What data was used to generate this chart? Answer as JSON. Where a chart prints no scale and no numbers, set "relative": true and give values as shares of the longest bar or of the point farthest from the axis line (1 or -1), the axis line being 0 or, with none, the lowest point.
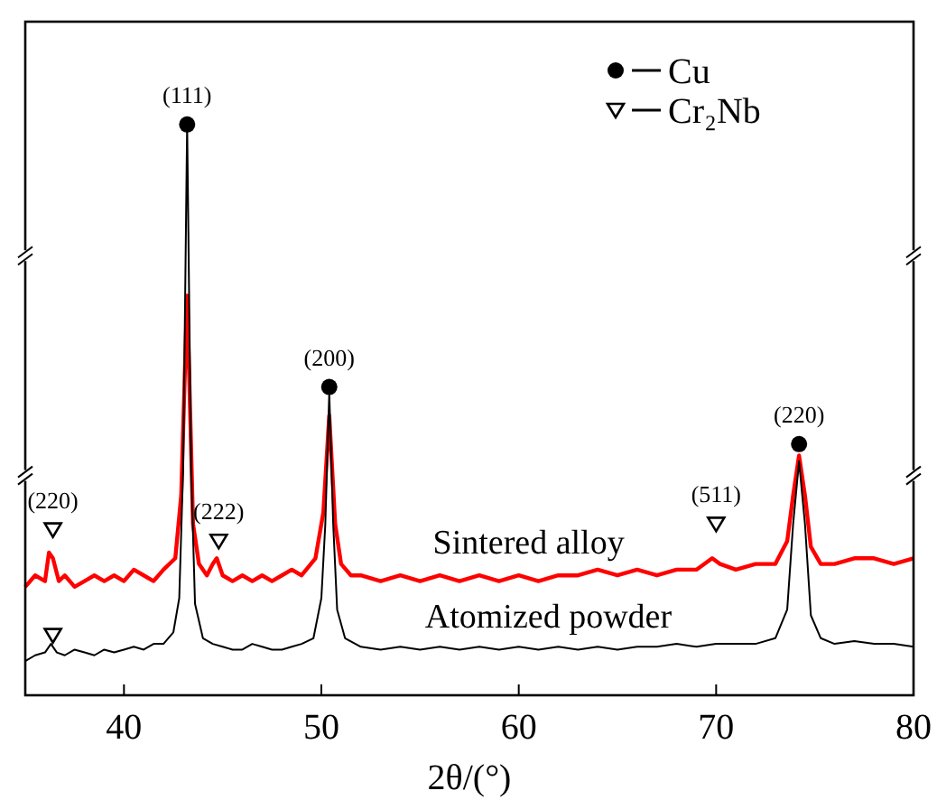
{
  "chart_data": {
    "type": "line",
    "relative": true,
    "xlabel": "2θ/(°)",
    "xlim": [
      35,
      80
    ],
    "xticks": [
      40,
      50,
      60,
      70,
      80
    ],
    "tick_labels": "x",
    "grid": false,
    "legend": "top right",
    "series": [
      {
        "name": "Sintered alloy",
        "color": "#ff0000",
        "x": [
          35,
          35.5,
          36,
          36.2,
          36.4,
          36.7,
          37,
          37.5,
          38,
          38.5,
          39,
          39.5,
          40,
          40.5,
          41,
          41.5,
          42,
          42.6,
          42.9,
          43.2,
          43.5,
          43.8,
          44.2,
          44.5,
          44.7,
          45,
          45.5,
          46,
          46.5,
          47,
          47.5,
          48,
          48.5,
          49,
          49.7,
          50.1,
          50.4,
          50.7,
          51,
          51.5,
          52,
          53,
          54,
          55,
          56,
          57,
          58,
          59,
          60,
          61,
          62,
          63,
          64,
          65,
          66,
          67,
          68,
          69,
          69.8,
          70.2,
          71,
          72,
          73,
          73.6,
          73.9,
          74.2,
          74.5,
          74.8,
          75.3,
          76,
          77,
          78,
          79,
          80
        ],
        "values": [
          0.19,
          0.21,
          0.2,
          0.25,
          0.24,
          0.2,
          0.21,
          0.19,
          0.2,
          0.21,
          0.2,
          0.21,
          0.2,
          0.22,
          0.21,
          0.2,
          0.22,
          0.24,
          0.35,
          0.7,
          0.3,
          0.23,
          0.21,
          0.23,
          0.24,
          0.21,
          0.2,
          0.21,
          0.2,
          0.21,
          0.2,
          0.21,
          0.22,
          0.21,
          0.24,
          0.32,
          0.49,
          0.3,
          0.23,
          0.21,
          0.21,
          0.2,
          0.21,
          0.2,
          0.21,
          0.2,
          0.21,
          0.2,
          0.21,
          0.2,
          0.21,
          0.21,
          0.22,
          0.21,
          0.22,
          0.21,
          0.22,
          0.22,
          0.24,
          0.23,
          0.22,
          0.23,
          0.23,
          0.27,
          0.35,
          0.42,
          0.35,
          0.26,
          0.23,
          0.23,
          0.24,
          0.24,
          0.23,
          0.24
        ]
      },
      {
        "name": "Atomized powder",
        "color": "#000000",
        "x": [
          35,
          35.5,
          36,
          36.3,
          36.6,
          37,
          37.5,
          38,
          38.5,
          39,
          39.5,
          40,
          40.5,
          41,
          41.5,
          42,
          42.5,
          42.8,
          43,
          43.2,
          43.4,
          43.6,
          44,
          44.5,
          45,
          45.5,
          46,
          46.5,
          47,
          47.5,
          48,
          48.5,
          49,
          49.6,
          50,
          50.2,
          50.4,
          50.6,
          50.8,
          51.2,
          52,
          53,
          54,
          55,
          56,
          57,
          58,
          59,
          60,
          61,
          62,
          63,
          64,
          65,
          66,
          67,
          68,
          69,
          70,
          71,
          72,
          73,
          73.6,
          73.9,
          74.2,
          74.5,
          74.8,
          75.3,
          76,
          77,
          78,
          79,
          80
        ],
        "values": [
          0.06,
          0.07,
          0.075,
          0.09,
          0.075,
          0.07,
          0.08,
          0.075,
          0.07,
          0.08,
          0.075,
          0.08,
          0.085,
          0.08,
          0.09,
          0.09,
          0.11,
          0.17,
          0.4,
          1.0,
          0.4,
          0.16,
          0.1,
          0.09,
          0.085,
          0.08,
          0.08,
          0.09,
          0.085,
          0.08,
          0.08,
          0.085,
          0.09,
          0.1,
          0.17,
          0.3,
          0.53,
          0.3,
          0.15,
          0.1,
          0.085,
          0.08,
          0.085,
          0.08,
          0.085,
          0.08,
          0.085,
          0.08,
          0.085,
          0.08,
          0.085,
          0.08,
          0.085,
          0.08,
          0.085,
          0.085,
          0.09,
          0.085,
          0.09,
          0.09,
          0.09,
          0.1,
          0.15,
          0.3,
          0.41,
          0.3,
          0.14,
          0.1,
          0.09,
          0.095,
          0.09,
          0.09,
          0.085
        ]
      },
      {
        "name": "Cu",
        "type": "scatter",
        "marker": "circle",
        "color": "#000000",
        "x": [
          43.2,
          50.4,
          74.2
        ],
        "values": [
          1.0,
          0.54,
          0.44
        ]
      },
      {
        "name": "Cr₂Nb",
        "type": "scatter",
        "marker": "triangle",
        "color": "#000000",
        "x": [
          36.4,
          44.8,
          70.0,
          36.4
        ],
        "values": [
          0.29,
          0.27,
          0.3,
          0.105
        ]
      }
    ],
    "annotations": [
      {
        "text": "(111)",
        "x": 43.2,
        "y": 1.0
      },
      {
        "text": "(200)",
        "x": 50.4,
        "y": 0.54
      },
      {
        "text": "(220)",
        "x": 74.2,
        "y": 0.44
      },
      {
        "text": "(220)",
        "x": 36.4,
        "y": 0.29
      },
      {
        "text": "(222)",
        "x": 44.8,
        "y": 0.27
      },
      {
        "text": "(511)",
        "x": 70.0,
        "y": 0.3
      }
    ]
  }
}
